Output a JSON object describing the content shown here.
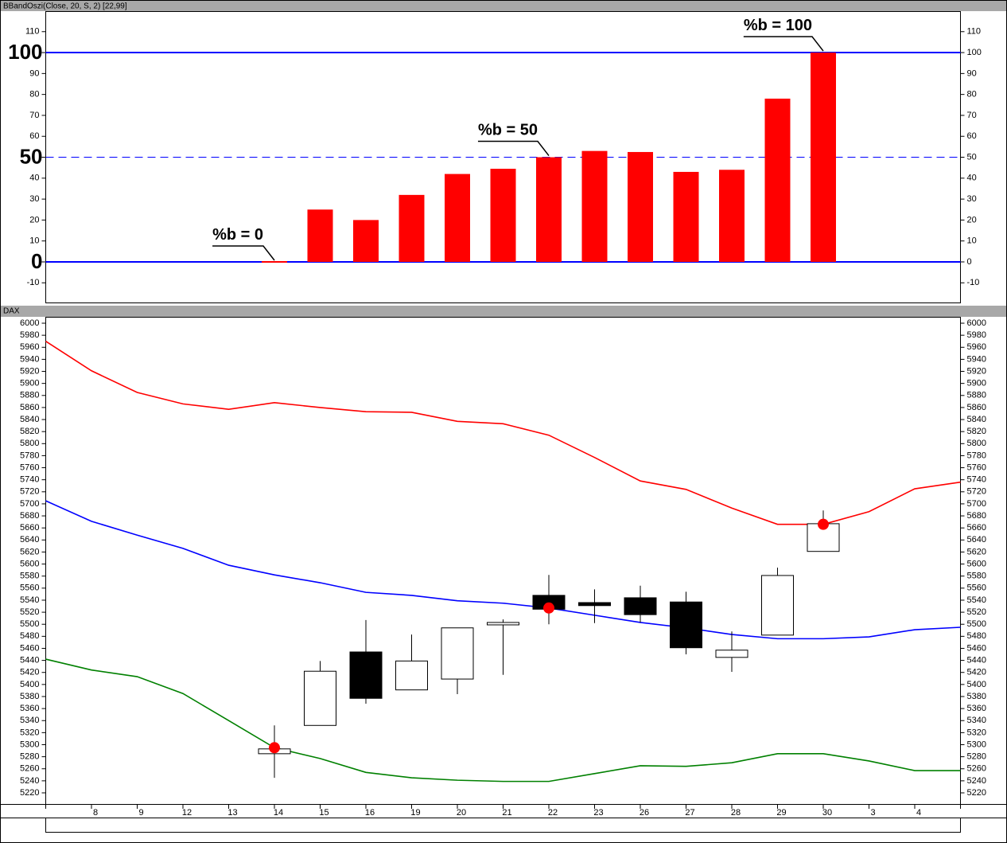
{
  "chart_data": [
    {
      "type": "bar",
      "title": "BBandOszi(Close, 20, S, 2) [22,99]",
      "categories": [
        null,
        "8",
        "9",
        "12",
        "13",
        "14",
        "15",
        "16",
        "19",
        "20",
        "21",
        "22",
        "23",
        "26",
        "27",
        "28",
        "29",
        "30",
        "3",
        "4",
        null
      ],
      "values": [
        null,
        null,
        null,
        null,
        null,
        0,
        25,
        20,
        32,
        42,
        44.5,
        50,
        53,
        52.5,
        43,
        44,
        78,
        100,
        null,
        null,
        null
      ],
      "color": "#ff0000",
      "ylim": [
        -19.4,
        119.8
      ],
      "yticks": [
        -10,
        0,
        10,
        20,
        30,
        40,
        50,
        60,
        70,
        80,
        90,
        100,
        110
      ],
      "major_yticks": [
        0,
        50,
        100
      ],
      "hlines": [
        {
          "value": 100,
          "color": "#0000ff",
          "dashed": false
        },
        {
          "value": 50,
          "color": "#0000ff",
          "dashed": true
        },
        {
          "value": 0,
          "color": "#0000ff",
          "dashed": false
        }
      ],
      "annotations": [
        {
          "text": "%b = 0",
          "index": 5,
          "value": 0
        },
        {
          "text": "%b = 50",
          "index": 11,
          "value": 50
        },
        {
          "text": "%b = 100",
          "index": 17,
          "value": 100
        }
      ]
    },
    {
      "type": "candlestick",
      "title": "DAX",
      "categories": [
        null,
        "8",
        "9",
        "12",
        "13",
        "14",
        "15",
        "16",
        "19",
        "20",
        "21",
        "22",
        "23",
        "26",
        "27",
        "28",
        "29",
        "30",
        "3",
        "4",
        null
      ],
      "open": [
        null,
        null,
        null,
        null,
        null,
        5285,
        5332,
        5454,
        5391,
        5409,
        5499,
        5548,
        5536,
        5544,
        5537,
        5445,
        5482,
        5621,
        null,
        null,
        null
      ],
      "high": [
        null,
        null,
        null,
        null,
        null,
        5332,
        5439,
        5507,
        5483,
        5494,
        5508,
        5582,
        5558,
        5564,
        5554,
        5488,
        5594,
        5689,
        null,
        null,
        null
      ],
      "low": [
        null,
        null,
        null,
        null,
        null,
        5245,
        5332,
        5368,
        5391,
        5384,
        5416,
        5500,
        5502,
        5503,
        5450,
        5421,
        5482,
        5621,
        null,
        null,
        null
      ],
      "close": [
        null,
        null,
        null,
        null,
        null,
        5293,
        5422,
        5377,
        5439,
        5494,
        5503,
        5525,
        5531,
        5516,
        5461,
        5457,
        5581,
        5667,
        null,
        null,
        null
      ],
      "up_color": "#ffffff",
      "down_color": "#000000",
      "bands": [
        {
          "color": "#ff0000",
          "values": [
            5970,
            5921,
            5885,
            5866,
            5857,
            5868,
            5860,
            5853,
            5852,
            5837,
            5833,
            5814,
            5777,
            5738,
            5724,
            5693,
            5666,
            5666,
            5687,
            5725,
            5736
          ]
        },
        {
          "color": "#0000ff",
          "values": [
            5705,
            5671,
            5648,
            5626,
            5598,
            5582,
            5569,
            5553,
            5548,
            5539,
            5535,
            5527,
            5515,
            5503,
            5494,
            5483,
            5476,
            5476,
            5479,
            5491,
            5495
          ]
        },
        {
          "color": "#008000",
          "values": [
            5442,
            5424,
            5413,
            5385,
            5340,
            5295,
            5277,
            5254,
            5245,
            5241,
            5239,
            5239,
            5252,
            5265,
            5264,
            5270,
            5285,
            5285,
            5273,
            5257,
            5257
          ]
        }
      ],
      "signals": {
        "color": "#ff0000",
        "values": [
          null,
          null,
          null,
          null,
          null,
          5295,
          null,
          null,
          null,
          null,
          null,
          5527,
          null,
          null,
          null,
          null,
          null,
          5666,
          null,
          null,
          null
        ]
      },
      "ylim": [
        5201.5,
        6010.6
      ],
      "yticks": [
        5220,
        5240,
        5260,
        5280,
        5300,
        5320,
        5340,
        5360,
        5380,
        5400,
        5420,
        5440,
        5460,
        5480,
        5500,
        5520,
        5540,
        5560,
        5580,
        5600,
        5620,
        5640,
        5660,
        5680,
        5700,
        5720,
        5740,
        5760,
        5780,
        5800,
        5820,
        5840,
        5860,
        5880,
        5900,
        5920,
        5940,
        5960,
        5980,
        6000
      ]
    }
  ]
}
